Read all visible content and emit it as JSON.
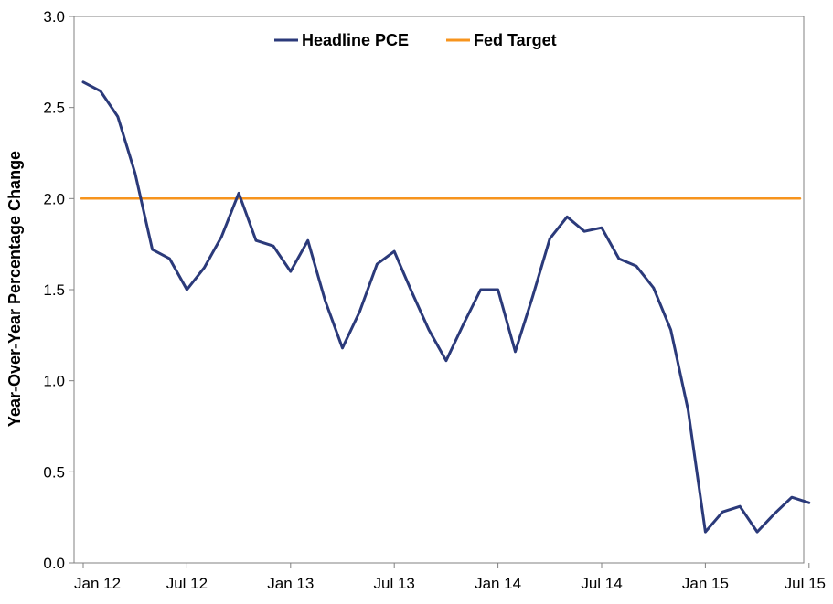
{
  "chart_data": {
    "type": "line",
    "title": "",
    "xlabel": "",
    "ylabel": "Year-Over-Year Percentage Change",
    "ylim": [
      0,
      3
    ],
    "yticks": [
      "0.0",
      "0.5",
      "1.0",
      "1.5",
      "2.0",
      "2.5",
      "3.0"
    ],
    "xtick_labels": [
      "Jan 12",
      "Jul 12",
      "Jan 13",
      "Jul 13",
      "Jan 14",
      "Jul 14",
      "Jan 15",
      "Jul 15"
    ],
    "x": [
      "2012-01",
      "2012-02",
      "2012-03",
      "2012-04",
      "2012-05",
      "2012-06",
      "2012-07",
      "2012-08",
      "2012-09",
      "2012-10",
      "2012-11",
      "2012-12",
      "2013-01",
      "2013-02",
      "2013-03",
      "2013-04",
      "2013-05",
      "2013-06",
      "2013-07",
      "2013-08",
      "2013-09",
      "2013-10",
      "2013-11",
      "2013-12",
      "2014-01",
      "2014-02",
      "2014-03",
      "2014-04",
      "2014-05",
      "2014-06",
      "2014-07",
      "2014-08",
      "2014-09",
      "2014-10",
      "2014-11",
      "2014-12",
      "2015-01",
      "2015-02",
      "2015-03",
      "2015-04",
      "2015-05",
      "2015-06",
      "2015-07"
    ],
    "grid": false,
    "legend": "top-center",
    "series": [
      {
        "name": "Headline PCE",
        "color": "#2B3A7A",
        "values": [
          2.64,
          2.59,
          2.45,
          2.14,
          1.72,
          1.67,
          1.5,
          1.62,
          1.79,
          2.03,
          1.77,
          1.74,
          1.6,
          1.77,
          1.44,
          1.18,
          1.38,
          1.64,
          1.71,
          1.49,
          1.28,
          1.11,
          1.31,
          1.5,
          1.5,
          1.16,
          1.46,
          1.78,
          1.9,
          1.82,
          1.84,
          1.67,
          1.63,
          1.51,
          1.28,
          0.84,
          0.17,
          0.28,
          0.31,
          0.17,
          0.27,
          0.36,
          0.33
        ]
      },
      {
        "name": "Fed Target",
        "color": "#F7941D",
        "values": [
          2.0,
          2.0,
          2.0,
          2.0,
          2.0,
          2.0,
          2.0,
          2.0,
          2.0,
          2.0,
          2.0,
          2.0,
          2.0,
          2.0,
          2.0,
          2.0,
          2.0,
          2.0,
          2.0,
          2.0,
          2.0,
          2.0,
          2.0,
          2.0,
          2.0,
          2.0,
          2.0,
          2.0,
          2.0,
          2.0,
          2.0,
          2.0,
          2.0,
          2.0,
          2.0,
          2.0,
          2.0,
          2.0,
          2.0,
          2.0,
          2.0,
          2.0,
          2.0
        ]
      }
    ]
  }
}
